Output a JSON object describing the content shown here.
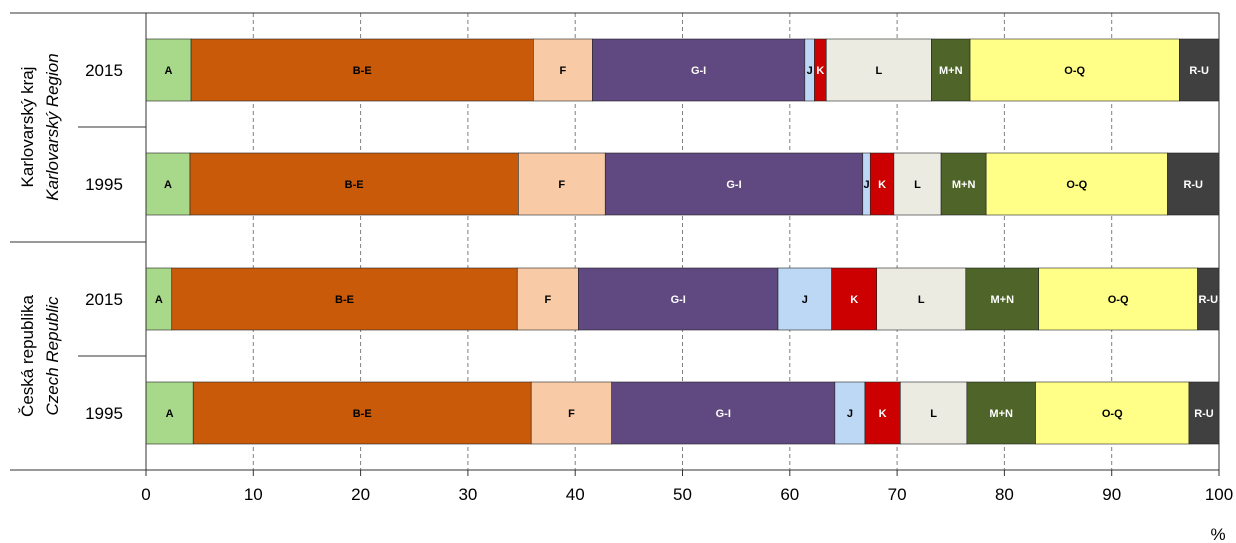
{
  "chart_data": {
    "type": "bar",
    "orientation": "horizontal-stacked-100",
    "unit_label": "%",
    "xlim": [
      0,
      100
    ],
    "x_ticks": [
      0,
      10,
      20,
      30,
      40,
      50,
      60,
      70,
      80,
      90,
      100
    ],
    "grid": "vertical dashed",
    "segment_colors": {
      "A": "#a8d88a",
      "B-E": "#c85a0a",
      "F": "#f8cba6",
      "G-I": "#604880",
      "J": "#bcd8f4",
      "K": "#cc0000",
      "L": "#ecebe2",
      "M+N": "#4e6428",
      "O-Q": "#ffff88",
      "R-U": "#404040"
    },
    "label_colors": {
      "A": "#000000",
      "B-E": "#000000",
      "F": "#000000",
      "G-I": "#ffffff",
      "J": "#000000",
      "K": "#ffffff",
      "L": "#000000",
      "M+N": "#ffffff",
      "O-Q": "#000000",
      "R-U": "#ffffff"
    },
    "groups": [
      {
        "name_line1": "Karlovarský kraj",
        "name_line2": "Karlovarský Region",
        "bars": [
          {
            "year": "2015",
            "segments": [
              {
                "label": "A",
                "value": 4.2
              },
              {
                "label": "B-E",
                "value": 31.9
              },
              {
                "label": "F",
                "value": 5.5
              },
              {
                "label": "G-I",
                "value": 19.8
              },
              {
                "label": "J",
                "value": 0.9
              },
              {
                "label": "K",
                "value": 1.1
              },
              {
                "label": "L",
                "value": 9.8
              },
              {
                "label": "M+N",
                "value": 3.6
              },
              {
                "label": "O-Q",
                "value": 19.5
              },
              {
                "label": "R-U",
                "value": 3.7
              }
            ]
          },
          {
            "year": "1995",
            "segments": [
              {
                "label": "A",
                "value": 4.1
              },
              {
                "label": "B-E",
                "value": 30.6
              },
              {
                "label": "F",
                "value": 8.1
              },
              {
                "label": "G-I",
                "value": 24.0
              },
              {
                "label": "J",
                "value": 0.7
              },
              {
                "label": "K",
                "value": 2.2
              },
              {
                "label": "L",
                "value": 4.4
              },
              {
                "label": "M+N",
                "value": 4.2
              },
              {
                "label": "O-Q",
                "value": 16.9
              },
              {
                "label": "R-U",
                "value": 4.8
              }
            ]
          }
        ]
      },
      {
        "name_line1": "Česká republika",
        "name_line2": "Czech Republic",
        "bars": [
          {
            "year": "2015",
            "segments": [
              {
                "label": "A",
                "value": 2.4
              },
              {
                "label": "B-E",
                "value": 32.2
              },
              {
                "label": "F",
                "value": 5.7
              },
              {
                "label": "G-I",
                "value": 18.6
              },
              {
                "label": "J",
                "value": 5.0
              },
              {
                "label": "K",
                "value": 4.2
              },
              {
                "label": "L",
                "value": 8.3
              },
              {
                "label": "M+N",
                "value": 6.8
              },
              {
                "label": "O-Q",
                "value": 14.8
              },
              {
                "label": "R-U",
                "value": 2.0
              }
            ]
          },
          {
            "year": "1995",
            "segments": [
              {
                "label": "A",
                "value": 4.4
              },
              {
                "label": "B-E",
                "value": 31.5
              },
              {
                "label": "F",
                "value": 7.5
              },
              {
                "label": "G-I",
                "value": 20.8
              },
              {
                "label": "J",
                "value": 2.8
              },
              {
                "label": "K",
                "value": 3.3
              },
              {
                "label": "L",
                "value": 6.2
              },
              {
                "label": "M+N",
                "value": 6.4
              },
              {
                "label": "O-Q",
                "value": 14.3
              },
              {
                "label": "R-U",
                "value": 2.8
              }
            ]
          }
        ]
      }
    ]
  }
}
